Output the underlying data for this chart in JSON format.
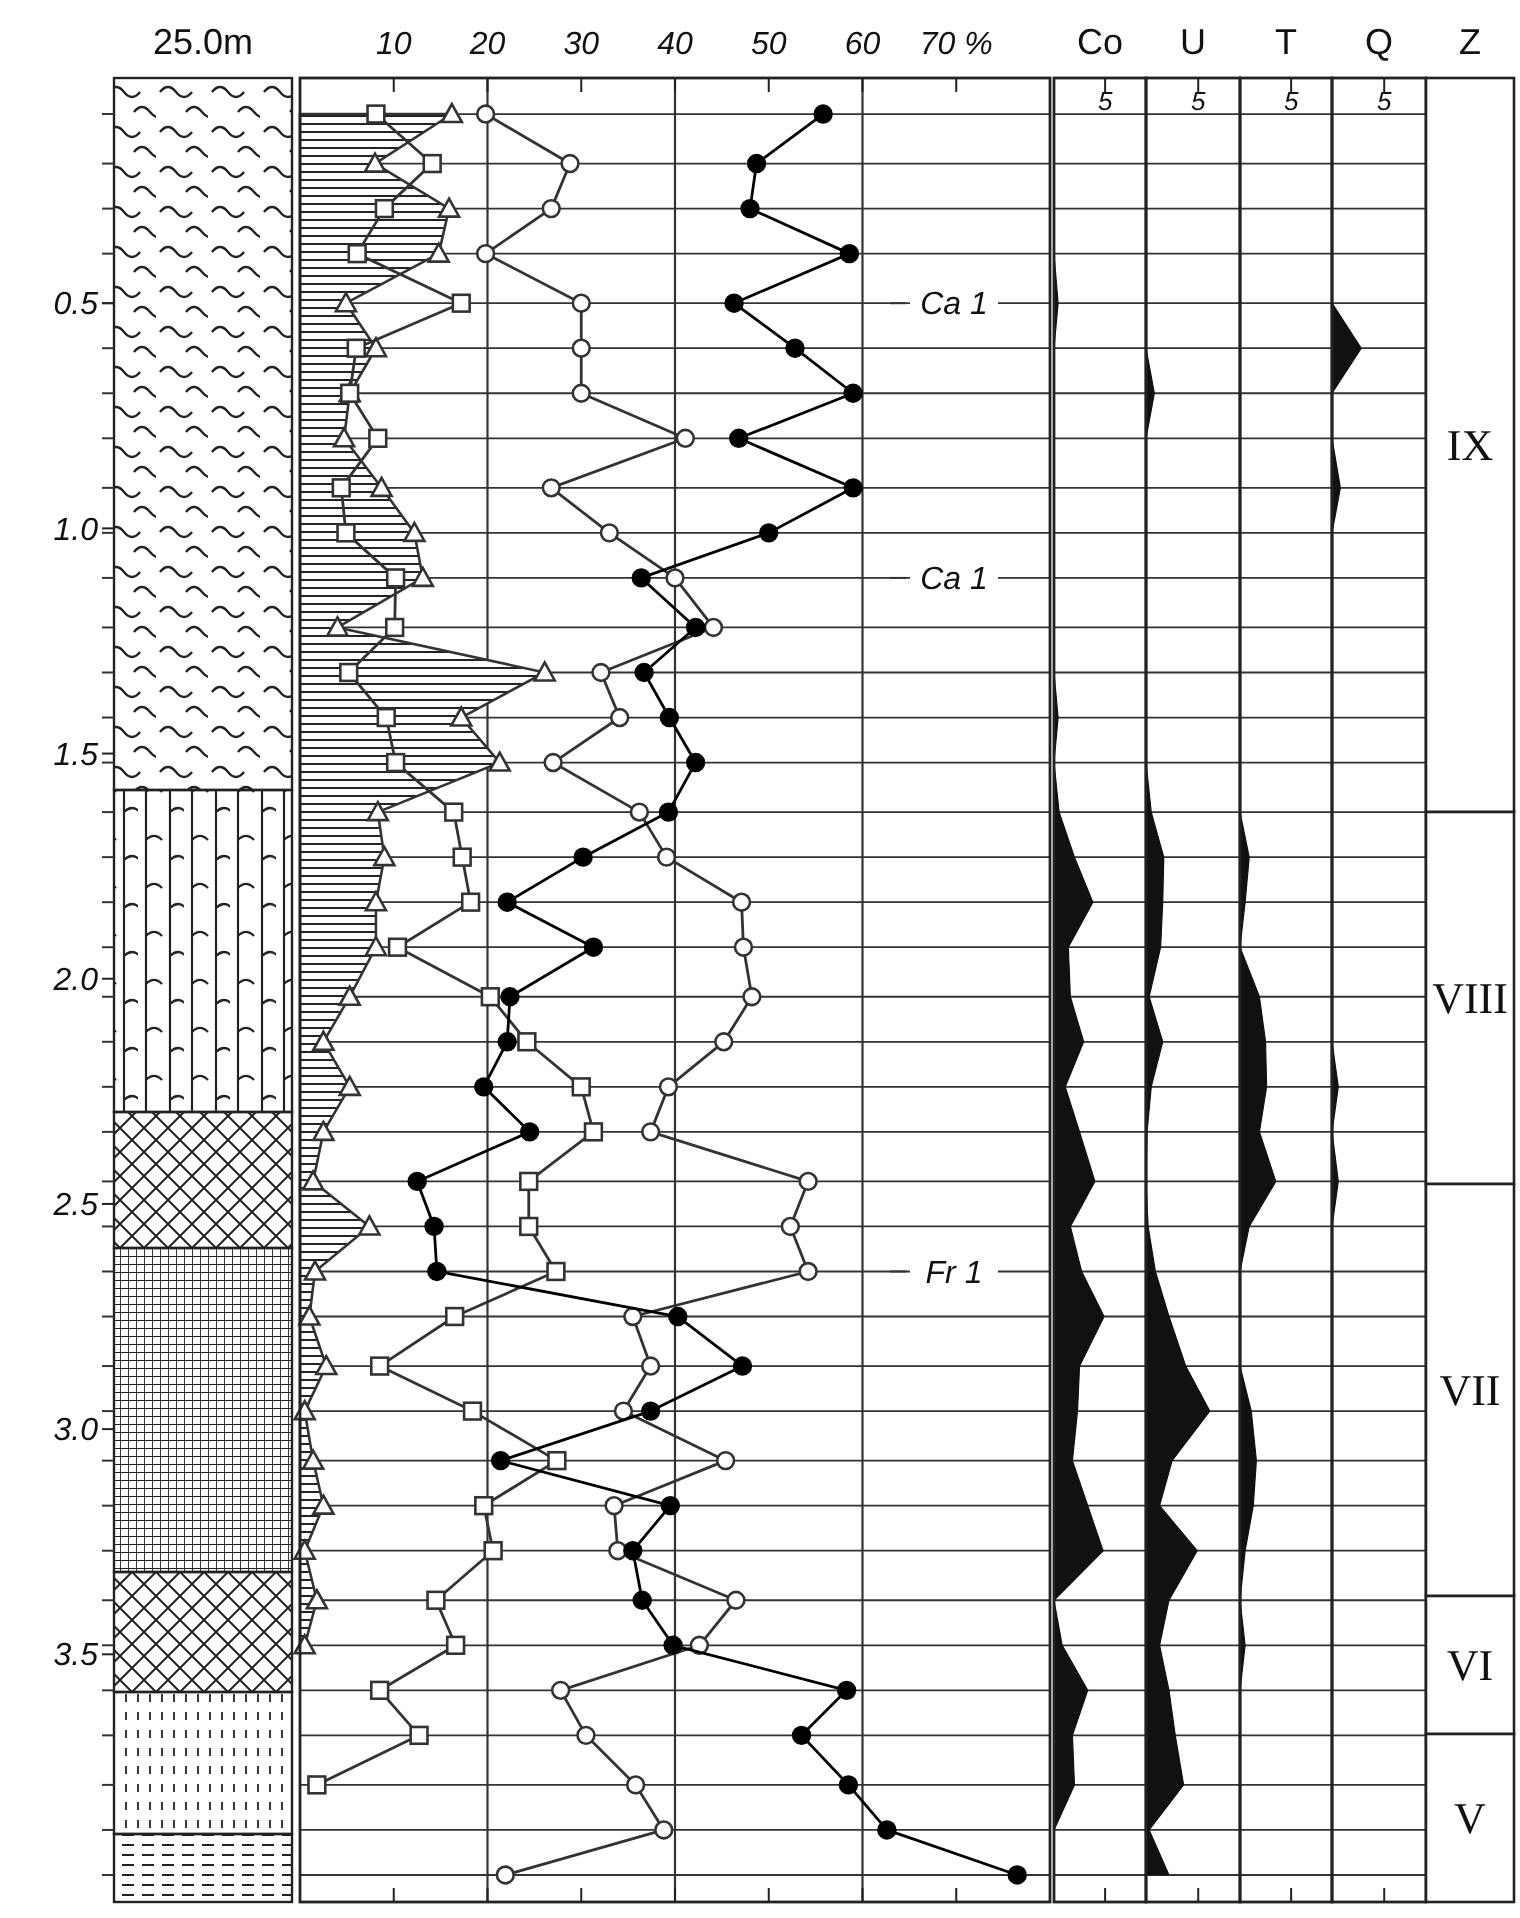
{
  "chart_data": [
    {
      "type": "line",
      "orientation": "horizontal",
      "xlim": [
        0,
        80
      ],
      "ylim": [
        4.05,
        0
      ],
      "xticks": [
        10,
        20,
        30,
        40,
        50,
        60,
        {
          "value": 70,
          "label": "70 %"
        }
      ],
      "yticks": [
        {
          "value": 0.5,
          "label": "0.5"
        },
        {
          "value": 1,
          "label": "1.0"
        },
        {
          "value": 1.5,
          "label": "1.5"
        },
        {
          "value": 2,
          "label": "2.0"
        },
        {
          "value": 2.5,
          "label": "2.5"
        },
        {
          "value": 3,
          "label": "3.0"
        },
        {
          "value": 3.5,
          "label": "3.5"
        }
      ],
      "x": [
        0.08,
        0.19,
        0.29,
        0.39,
        0.5,
        0.6,
        0.7,
        0.8,
        0.91,
        1.01,
        1.11,
        1.22,
        1.32,
        1.42,
        1.52,
        1.63,
        1.73,
        1.83,
        1.93,
        2.04,
        2.14,
        2.24,
        2.34,
        2.45,
        2.55,
        2.65,
        2.75,
        2.86,
        2.96,
        3.07,
        3.17,
        3.27,
        3.38,
        3.48,
        3.58,
        3.68,
        3.79,
        3.89,
        3.99
      ],
      "ref_lines": [
        {
          "axis": "x",
          "value": 20
        },
        {
          "axis": "x",
          "value": 40
        },
        {
          "axis": "x",
          "value": 60
        },
        {
          "axis": "y",
          "value": 0.5,
          "label": "Ca 1"
        },
        {
          "axis": "y",
          "value": 1.11,
          "label": "Ca 1"
        },
        {
          "axis": "y",
          "value": 2.65,
          "label": "Fr 1"
        },
        {
          "axis": "y",
          "value": 0.08
        },
        {
          "axis": "y",
          "value": 0.19
        },
        {
          "axis": "y",
          "value": 0.29
        },
        {
          "axis": "y",
          "value": 0.39
        },
        {
          "axis": "y",
          "value": 0.6
        },
        {
          "axis": "y",
          "value": 0.7
        },
        {
          "axis": "y",
          "value": 0.8
        },
        {
          "axis": "y",
          "value": 0.91
        },
        {
          "axis": "y",
          "value": 1.01
        },
        {
          "axis": "y",
          "value": 1.22
        },
        {
          "axis": "y",
          "value": 1.32
        },
        {
          "axis": "y",
          "value": 1.42
        },
        {
          "axis": "y",
          "value": 1.52
        },
        {
          "axis": "y",
          "value": 1.63
        },
        {
          "axis": "y",
          "value": 1.73
        },
        {
          "axis": "y",
          "value": 1.83
        },
        {
          "axis": "y",
          "value": 1.93
        },
        {
          "axis": "y",
          "value": 2.04
        },
        {
          "axis": "y",
          "value": 2.14
        },
        {
          "axis": "y",
          "value": 2.24
        },
        {
          "axis": "y",
          "value": 2.34
        },
        {
          "axis": "y",
          "value": 2.45
        },
        {
          "axis": "y",
          "value": 2.55
        },
        {
          "axis": "y",
          "value": 2.75
        },
        {
          "axis": "y",
          "value": 2.86
        },
        {
          "axis": "y",
          "value": 2.96
        },
        {
          "axis": "y",
          "value": 3.07
        },
        {
          "axis": "y",
          "value": 3.17
        },
        {
          "axis": "y",
          "value": 3.27
        },
        {
          "axis": "y",
          "value": 3.38
        },
        {
          "axis": "y",
          "value": 3.48
        },
        {
          "axis": "y",
          "value": 3.58
        },
        {
          "axis": "y",
          "value": 3.68
        },
        {
          "axis": "y",
          "value": 3.79
        },
        {
          "axis": "y",
          "value": 3.89
        },
        {
          "axis": "y",
          "value": 3.99
        }
      ],
      "annotations": [
        "25.0m"
      ],
      "series": [
        {
          "type": "area",
          "color": "#333333",
          "marker": "triangle",
          "values": [
            16.2,
            8,
            15.9,
            14.8,
            4.9,
            8.1,
            5.3,
            4.7,
            8.7,
            12.2,
            13.1,
            4,
            26.1,
            17.2,
            21.3,
            8.3,
            9,
            8.1,
            8.1,
            5.3,
            2.5,
            5.3,
            2.5,
            1.4,
            7.4,
            1.6,
            1,
            2.8,
            0.5,
            1.4,
            2.5,
            0.5,
            1.8,
            0.5,
            null,
            null,
            null,
            null,
            null
          ]
        },
        {
          "color": "#333333",
          "marker": "square",
          "values": [
            8.1,
            14.1,
            9,
            6.1,
            17.2,
            6,
            5.3,
            8.3,
            4.4,
            4.9,
            10.2,
            10.1,
            5.2,
            9.2,
            10.2,
            16.4,
            17.3,
            18.2,
            10.4,
            20.3,
            24.2,
            30,
            31.3,
            24.4,
            24.4,
            27.3,
            16.5,
            8.5,
            18.4,
            27.4,
            19.6,
            20.6,
            14.5,
            16.6,
            8.5,
            12.7,
            1.8,
            null,
            null
          ]
        },
        {
          "color": "#333333",
          "marker": "circle",
          "values": [
            19.8,
            28.8,
            26.8,
            19.8,
            30,
            30,
            30,
            41.1,
            26.8,
            33,
            40,
            44.1,
            32.1,
            34.1,
            27,
            36.2,
            39.1,
            47.1,
            47.3,
            48.2,
            45.2,
            39.3,
            37.4,
            54.2,
            52.3,
            54.2,
            35.5,
            37.4,
            34.5,
            45.4,
            33.5,
            33.9,
            46.5,
            42.6,
            27.8,
            30.5,
            35.8,
            38.8,
            21.9
          ]
        },
        {
          "color": "#000000",
          "marker": "circle",
          "values": [
            55.8,
            48.7,
            48,
            58.6,
            46.3,
            52.8,
            59,
            46.8,
            59,
            50,
            36.4,
            42.2,
            36.7,
            39.4,
            42.2,
            39.3,
            30.2,
            22.1,
            31.3,
            22.4,
            22.1,
            19.6,
            24.5,
            12.5,
            14.3,
            14.6,
            40.3,
            47.2,
            37.4,
            21.4,
            39.5,
            35.5,
            36.5,
            39.8,
            58.3,
            53.5,
            58.5,
            62.6,
            76.5
          ]
        }
      ]
    },
    {
      "type": "area",
      "title": "Co",
      "orientation": "horizontal",
      "xlim": [
        0,
        9
      ],
      "xticks": [
        5
      ],
      "ylim": [
        4.05,
        0
      ],
      "tick_labels": "x",
      "grid": "y",
      "x": [
        0.08,
        0.19,
        0.29,
        0.39,
        0.5,
        0.6,
        0.7,
        0.8,
        0.91,
        1.01,
        1.11,
        1.22,
        1.32,
        1.42,
        1.52,
        1.63,
        1.73,
        1.83,
        1.93,
        2.04,
        2.14,
        2.24,
        2.34,
        2.45,
        2.55,
        2.65,
        2.75,
        2.86,
        2.96,
        3.07,
        3.17,
        3.27,
        3.38,
        3.48,
        3.58,
        3.68,
        3.79,
        3.89,
        3.99
      ],
      "yticks": [
        {
          "value": 0.08,
          "label": null
        },
        {
          "value": 0.19,
          "label": null
        },
        {
          "value": 0.29,
          "label": null
        },
        {
          "value": 0.39,
          "label": null
        },
        {
          "value": 0.5,
          "label": null
        },
        {
          "value": 0.6,
          "label": null
        },
        {
          "value": 0.7,
          "label": null
        },
        {
          "value": 0.8,
          "label": null
        },
        {
          "value": 0.91,
          "label": null
        },
        {
          "value": 1.01,
          "label": null
        },
        {
          "value": 1.11,
          "label": null
        },
        {
          "value": 1.22,
          "label": null
        },
        {
          "value": 1.32,
          "label": null
        },
        {
          "value": 1.42,
          "label": null
        },
        {
          "value": 1.52,
          "label": null
        },
        {
          "value": 1.63,
          "label": null
        },
        {
          "value": 1.73,
          "label": null
        },
        {
          "value": 1.83,
          "label": null
        },
        {
          "value": 1.93,
          "label": null
        },
        {
          "value": 2.04,
          "label": null
        },
        {
          "value": 2.14,
          "label": null
        },
        {
          "value": 2.24,
          "label": null
        },
        {
          "value": 2.34,
          "label": null
        },
        {
          "value": 2.45,
          "label": null
        },
        {
          "value": 2.55,
          "label": null
        },
        {
          "value": 2.65,
          "label": null
        },
        {
          "value": 2.75,
          "label": null
        },
        {
          "value": 2.86,
          "label": null
        },
        {
          "value": 2.96,
          "label": null
        },
        {
          "value": 3.07,
          "label": null
        },
        {
          "value": 3.17,
          "label": null
        },
        {
          "value": 3.27,
          "label": null
        },
        {
          "value": 3.38,
          "label": null
        },
        {
          "value": 3.48,
          "label": null
        },
        {
          "value": 3.58,
          "label": null
        },
        {
          "value": 3.68,
          "label": null
        },
        {
          "value": 3.79,
          "label": null
        },
        {
          "value": 3.89,
          "label": null
        },
        {
          "value": 3.99,
          "label": null
        }
      ],
      "series": [
        {
          "color": "#111111",
          "values": [
            0,
            0,
            0,
            0,
            0.4,
            0,
            0,
            0,
            0,
            0,
            0,
            0,
            0,
            0.4,
            0,
            0.5,
            2,
            3.8,
            1.4,
            1.6,
            2.9,
            1.1,
            2.5,
            4,
            1.6,
            2.7,
            4.9,
            2.5,
            2.3,
            1.8,
            3.3,
            4.8,
            0,
            0.8,
            3.3,
            1.8,
            2,
            0,
            0
          ]
        }
      ]
    },
    {
      "type": "area",
      "title": "U",
      "orientation": "horizontal",
      "xlim": [
        0,
        9
      ],
      "xticks": [
        5
      ],
      "ylim": [
        4.05,
        0
      ],
      "tick_labels": "x",
      "grid": "y",
      "x": [
        0.08,
        0.19,
        0.29,
        0.39,
        0.5,
        0.6,
        0.7,
        0.8,
        0.91,
        1.01,
        1.11,
        1.22,
        1.32,
        1.42,
        1.52,
        1.63,
        1.73,
        1.83,
        1.93,
        2.04,
        2.14,
        2.24,
        2.34,
        2.45,
        2.55,
        2.65,
        2.75,
        2.86,
        2.96,
        3.07,
        3.17,
        3.27,
        3.38,
        3.48,
        3.58,
        3.68,
        3.79,
        3.89,
        3.99
      ],
      "yticks": [
        {
          "value": 0.08,
          "label": null
        },
        {
          "value": 0.19,
          "label": null
        },
        {
          "value": 0.29,
          "label": null
        },
        {
          "value": 0.39,
          "label": null
        },
        {
          "value": 0.5,
          "label": null
        },
        {
          "value": 0.6,
          "label": null
        },
        {
          "value": 0.7,
          "label": null
        },
        {
          "value": 0.8,
          "label": null
        },
        {
          "value": 0.91,
          "label": null
        },
        {
          "value": 1.01,
          "label": null
        },
        {
          "value": 1.11,
          "label": null
        },
        {
          "value": 1.22,
          "label": null
        },
        {
          "value": 1.32,
          "label": null
        },
        {
          "value": 1.42,
          "label": null
        },
        {
          "value": 1.52,
          "label": null
        },
        {
          "value": 1.63,
          "label": null
        },
        {
          "value": 1.73,
          "label": null
        },
        {
          "value": 1.83,
          "label": null
        },
        {
          "value": 1.93,
          "label": null
        },
        {
          "value": 2.04,
          "label": null
        },
        {
          "value": 2.14,
          "label": null
        },
        {
          "value": 2.24,
          "label": null
        },
        {
          "value": 2.34,
          "label": null
        },
        {
          "value": 2.45,
          "label": null
        },
        {
          "value": 2.55,
          "label": null
        },
        {
          "value": 2.65,
          "label": null
        },
        {
          "value": 2.75,
          "label": null
        },
        {
          "value": 2.86,
          "label": null
        },
        {
          "value": 2.96,
          "label": null
        },
        {
          "value": 3.07,
          "label": null
        },
        {
          "value": 3.17,
          "label": null
        },
        {
          "value": 3.27,
          "label": null
        },
        {
          "value": 3.38,
          "label": null
        },
        {
          "value": 3.48,
          "label": null
        },
        {
          "value": 3.58,
          "label": null
        },
        {
          "value": 3.68,
          "label": null
        },
        {
          "value": 3.79,
          "label": null
        },
        {
          "value": 3.89,
          "label": null
        },
        {
          "value": 3.99,
          "label": null
        }
      ],
      "series": [
        {
          "color": "#111111",
          "values": [
            0,
            0,
            0,
            0,
            0,
            0,
            0.8,
            0,
            0,
            0,
            0,
            0,
            0,
            0,
            0,
            0.5,
            1.7,
            1.6,
            1.4,
            0.3,
            1.6,
            0.5,
            0.1,
            0,
            0.2,
            0.9,
            2.2,
            3.8,
            6.1,
            2.5,
            1.3,
            4.9,
            2.2,
            1.3,
            2.2,
            2.8,
            3.6,
            0.3,
            2.2
          ]
        }
      ]
    },
    {
      "type": "area",
      "title": "T",
      "orientation": "horizontal",
      "xlim": [
        0,
        9
      ],
      "xticks": [
        5
      ],
      "ylim": [
        4.05,
        0
      ],
      "tick_labels": "x",
      "grid": "y",
      "x": [
        0.08,
        0.19,
        0.29,
        0.39,
        0.5,
        0.6,
        0.7,
        0.8,
        0.91,
        1.01,
        1.11,
        1.22,
        1.32,
        1.42,
        1.52,
        1.63,
        1.73,
        1.83,
        1.93,
        2.04,
        2.14,
        2.24,
        2.34,
        2.45,
        2.55,
        2.65,
        2.75,
        2.86,
        2.96,
        3.07,
        3.17,
        3.27,
        3.38,
        3.48,
        3.58,
        3.68,
        3.79,
        3.89,
        3.99
      ],
      "yticks": [
        {
          "value": 0.08,
          "label": null
        },
        {
          "value": 0.19,
          "label": null
        },
        {
          "value": 0.29,
          "label": null
        },
        {
          "value": 0.39,
          "label": null
        },
        {
          "value": 0.5,
          "label": null
        },
        {
          "value": 0.6,
          "label": null
        },
        {
          "value": 0.7,
          "label": null
        },
        {
          "value": 0.8,
          "label": null
        },
        {
          "value": 0.91,
          "label": null
        },
        {
          "value": 1.01,
          "label": null
        },
        {
          "value": 1.11,
          "label": null
        },
        {
          "value": 1.22,
          "label": null
        },
        {
          "value": 1.32,
          "label": null
        },
        {
          "value": 1.42,
          "label": null
        },
        {
          "value": 1.52,
          "label": null
        },
        {
          "value": 1.63,
          "label": null
        },
        {
          "value": 1.73,
          "label": null
        },
        {
          "value": 1.83,
          "label": null
        },
        {
          "value": 1.93,
          "label": null
        },
        {
          "value": 2.04,
          "label": null
        },
        {
          "value": 2.14,
          "label": null
        },
        {
          "value": 2.24,
          "label": null
        },
        {
          "value": 2.34,
          "label": null
        },
        {
          "value": 2.45,
          "label": null
        },
        {
          "value": 2.55,
          "label": null
        },
        {
          "value": 2.65,
          "label": null
        },
        {
          "value": 2.75,
          "label": null
        },
        {
          "value": 2.86,
          "label": null
        },
        {
          "value": 2.96,
          "label": null
        },
        {
          "value": 3.07,
          "label": null
        },
        {
          "value": 3.17,
          "label": null
        },
        {
          "value": 3.27,
          "label": null
        },
        {
          "value": 3.38,
          "label": null
        },
        {
          "value": 3.48,
          "label": null
        },
        {
          "value": 3.58,
          "label": null
        },
        {
          "value": 3.68,
          "label": null
        },
        {
          "value": 3.79,
          "label": null
        },
        {
          "value": 3.89,
          "label": null
        },
        {
          "value": 3.99,
          "label": null
        }
      ],
      "series": [
        {
          "color": "#111111",
          "values": [
            0,
            0,
            0,
            0,
            0,
            0,
            0,
            0,
            0,
            0,
            0,
            0,
            0,
            0,
            0,
            0,
            0.9,
            0.5,
            0,
            1.9,
            2.5,
            2.6,
            1.9,
            3.5,
            0.9,
            0,
            0,
            0,
            1.1,
            1.6,
            1.3,
            0.5,
            0,
            0.5,
            0,
            0,
            0,
            0,
            0
          ]
        }
      ]
    },
    {
      "type": "area",
      "title": "Q",
      "orientation": "horizontal",
      "xlim": [
        0,
        9
      ],
      "xticks": [
        5
      ],
      "ylim": [
        4.05,
        0
      ],
      "tick_labels": "x",
      "grid": "y",
      "x": [
        0.08,
        0.19,
        0.29,
        0.39,
        0.5,
        0.6,
        0.7,
        0.8,
        0.91,
        1.01,
        1.11,
        1.22,
        1.32,
        1.42,
        1.52,
        1.63,
        1.73,
        1.83,
        1.93,
        2.04,
        2.14,
        2.24,
        2.34,
        2.45,
        2.55,
        2.65,
        2.75,
        2.86,
        2.96,
        3.07,
        3.17,
        3.27,
        3.38,
        3.48,
        3.58,
        3.68,
        3.79,
        3.89,
        3.99
      ],
      "yticks": [
        {
          "value": 0.08,
          "label": null
        },
        {
          "value": 0.19,
          "label": null
        },
        {
          "value": 0.29,
          "label": null
        },
        {
          "value": 0.39,
          "label": null
        },
        {
          "value": 0.5,
          "label": null
        },
        {
          "value": 0.6,
          "label": null
        },
        {
          "value": 0.7,
          "label": null
        },
        {
          "value": 0.8,
          "label": null
        },
        {
          "value": 0.91,
          "label": null
        },
        {
          "value": 1.01,
          "label": null
        },
        {
          "value": 1.11,
          "label": null
        },
        {
          "value": 1.22,
          "label": null
        },
        {
          "value": 1.32,
          "label": null
        },
        {
          "value": 1.42,
          "label": null
        },
        {
          "value": 1.52,
          "label": null
        },
        {
          "value": 1.63,
          "label": null
        },
        {
          "value": 1.73,
          "label": null
        },
        {
          "value": 1.83,
          "label": null
        },
        {
          "value": 1.93,
          "label": null
        },
        {
          "value": 2.04,
          "label": null
        },
        {
          "value": 2.14,
          "label": null
        },
        {
          "value": 2.24,
          "label": null
        },
        {
          "value": 2.34,
          "label": null
        },
        {
          "value": 2.45,
          "label": null
        },
        {
          "value": 2.55,
          "label": null
        },
        {
          "value": 2.65,
          "label": null
        },
        {
          "value": 2.75,
          "label": null
        },
        {
          "value": 2.86,
          "label": null
        },
        {
          "value": 2.96,
          "label": null
        },
        {
          "value": 3.07,
          "label": null
        },
        {
          "value": 3.17,
          "label": null
        },
        {
          "value": 3.27,
          "label": null
        },
        {
          "value": 3.38,
          "label": null
        },
        {
          "value": 3.48,
          "label": null
        },
        {
          "value": 3.58,
          "label": null
        },
        {
          "value": 3.68,
          "label": null
        },
        {
          "value": 3.79,
          "label": null
        },
        {
          "value": 3.89,
          "label": null
        },
        {
          "value": 3.99,
          "label": null
        }
      ],
      "series": [
        {
          "color": "#111111",
          "values": [
            0,
            0,
            0,
            0,
            0,
            2.8,
            0,
            0,
            0.8,
            0,
            0,
            0,
            0,
            0,
            0,
            0,
            0,
            0,
            0,
            0,
            0,
            0.6,
            0,
            0.6,
            0,
            0,
            0,
            0,
            0,
            0,
            0,
            0,
            0,
            0,
            0,
            0,
            0,
            0,
            0
          ]
        }
      ]
    },
    {
      "type": "other",
      "title": "Z",
      "annotations": [
        "IX",
        "VIII",
        "VII",
        "VI",
        "V"
      ]
    }
  ]
}
